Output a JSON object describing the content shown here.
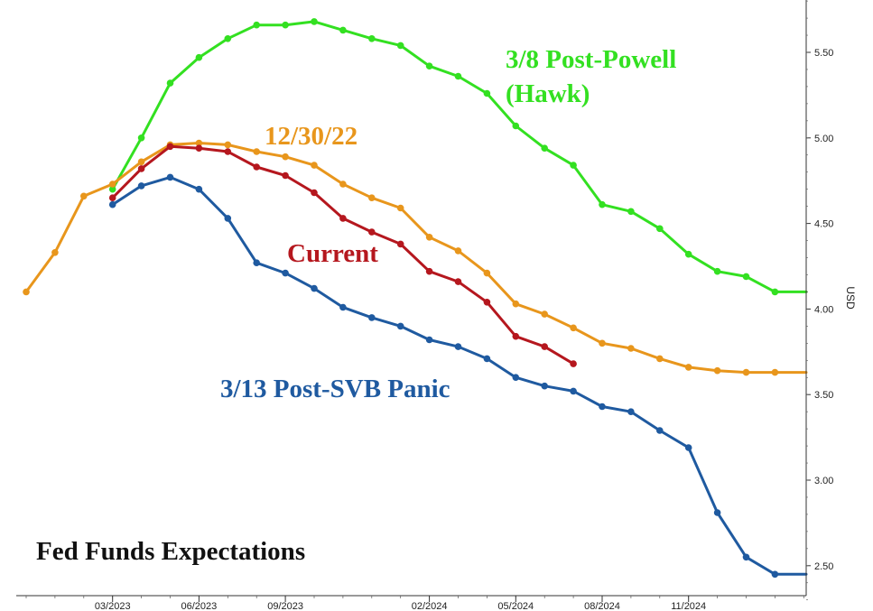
{
  "chart_data": {
    "type": "line",
    "title": "Fed Funds Expectations",
    "xlabel": "",
    "ylabel": "USD",
    "ylim": [
      2.3,
      5.8
    ],
    "y_ticks": [
      2.5,
      3.0,
      3.5,
      4.0,
      4.5,
      5.0,
      5.5
    ],
    "y_tick_labels": [
      "2.50",
      "3.00",
      "3.50",
      "4.00",
      "4.50",
      "5.00",
      "5.50"
    ],
    "x_tick_labels": [
      {
        "index": 3,
        "label": "03/2023"
      },
      {
        "index": 6,
        "label": "06/2023"
      },
      {
        "index": 9,
        "label": "09/2023"
      },
      {
        "index": 14,
        "label": "02/2024"
      },
      {
        "index": 17,
        "label": "05/2024"
      },
      {
        "index": 20,
        "label": "08/2024"
      },
      {
        "index": 23,
        "label": "11/2024"
      }
    ],
    "series": [
      {
        "name": "3/8 Post-Powell (Hawk)",
        "color": "#33e021",
        "label_lines": [
          "3/8 Post-Powell",
          "(Hawk)"
        ],
        "start": 3,
        "values": [
          4.7,
          5.0,
          5.32,
          5.47,
          5.58,
          5.66,
          5.66,
          5.68,
          5.63,
          5.58,
          5.54,
          5.42,
          5.36,
          5.26,
          5.07,
          4.94,
          4.84,
          4.61,
          4.57,
          4.47,
          4.32,
          4.22,
          4.19,
          4.1
        ],
        "tail": true
      },
      {
        "name": "12/30/22",
        "color": "#e8961c",
        "label_lines": [
          "12/30/22"
        ],
        "start": 0,
        "values": [
          4.1,
          4.33,
          4.66,
          4.73,
          4.86,
          4.96,
          4.97,
          4.96,
          4.92,
          4.89,
          4.84,
          4.73,
          4.65,
          4.59,
          4.42,
          4.34,
          4.21,
          4.03,
          3.97,
          3.89,
          3.8,
          3.77,
          3.71,
          3.66,
          3.64,
          3.63,
          3.63
        ],
        "tail": true
      },
      {
        "name": "Current",
        "color": "#b5171e",
        "label_lines": [
          "Current"
        ],
        "start": 3,
        "values": [
          4.65,
          4.82,
          4.95,
          4.94,
          4.92,
          4.83,
          4.78,
          4.68,
          4.53,
          4.45,
          4.38,
          4.22,
          4.16,
          4.04,
          3.84,
          3.78,
          3.68
        ],
        "tail": false
      },
      {
        "name": "3/13 Post-SVB Panic",
        "color": "#1f5aa0",
        "label_lines": [
          "3/13 Post-SVB Panic"
        ],
        "start": 3,
        "values": [
          4.61,
          4.72,
          4.77,
          4.7,
          4.53,
          4.27,
          4.21,
          4.12,
          4.01,
          3.95,
          3.9,
          3.82,
          3.78,
          3.71,
          3.6,
          3.55,
          3.52,
          3.43,
          3.4,
          3.29,
          3.19,
          2.81,
          2.55,
          2.45
        ],
        "tail": true
      }
    ]
  }
}
